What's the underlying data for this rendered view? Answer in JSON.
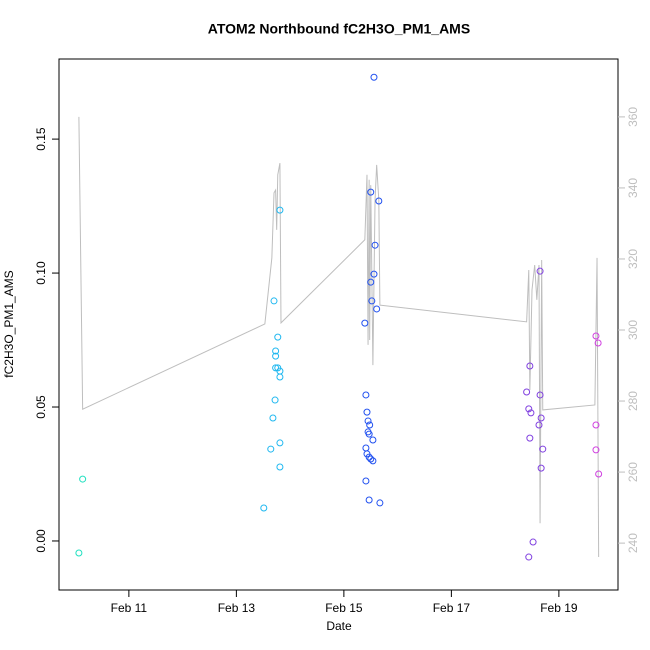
{
  "chart_data": {
    "type": "scatter",
    "title": "ATOM2 Northbound fC2H3O_PM1_AMS",
    "xlabel": "Date",
    "ylabel": "fC2H3O_PM1_AMS",
    "xlim": [
      9.7,
      20.1
    ],
    "ylim": [
      -0.0183,
      0.1799
    ],
    "y2lim": [
      226.8,
      376.3
    ],
    "xticks": [
      {
        "value": 11,
        "label": "Feb 11"
      },
      {
        "value": 13,
        "label": "Feb 13"
      },
      {
        "value": 15,
        "label": "Feb 15"
      },
      {
        "value": 17,
        "label": "Feb 17"
      },
      {
        "value": 19,
        "label": "Feb 19"
      }
    ],
    "yticks": [
      {
        "value": 0,
        "label": "0.00"
      },
      {
        "value": 0.05,
        "label": "0.05"
      },
      {
        "value": 0.1,
        "label": "0.10"
      },
      {
        "value": 0.15,
        "label": "0.15"
      }
    ],
    "y2ticks": [
      240,
      260,
      280,
      300,
      320,
      340,
      360
    ],
    "series": [
      {
        "type": "line",
        "axis": "y2",
        "color": "#bebebe",
        "x": [
          10.07,
          10.14,
          13.53,
          13.66,
          13.7,
          13.73,
          13.75,
          13.77,
          13.81,
          13.83,
          15.39,
          15.43,
          15.45,
          15.47,
          15.48,
          15.5,
          15.54,
          15.58,
          15.61,
          15.65,
          15.67,
          18.4,
          18.44,
          18.46,
          18.5,
          18.55,
          18.59,
          18.63,
          18.65,
          18.68,
          18.7,
          19.67,
          19.71,
          19.74
        ],
        "values": [
          360,
          277.7,
          301.7,
          320.3,
          338.6,
          339.4,
          328.2,
          343.7,
          347.0,
          302,
          325.4,
          343.7,
          295.8,
          342.3,
          297.2,
          340.8,
          290.1,
          336.6,
          346.5,
          336.6,
          307,
          302.3,
          316.9,
          283.1,
          311.3,
          318.3,
          308.5,
          318.3,
          245.6,
          319.7,
          277.5,
          278.9,
          320.3,
          236.1
        ]
      },
      {
        "type": "scatter",
        "color": "#20e0c0",
        "x": [
          10.07,
          10.14
        ],
        "values": [
          -0.0045,
          0.0231
        ]
      },
      {
        "type": "scatter",
        "color": "#20b8f0",
        "x": [
          13.81,
          13.7,
          13.77,
          13.73,
          13.73,
          13.73,
          13.77,
          13.81,
          13.81,
          13.72,
          13.68,
          13.81,
          13.64,
          13.81,
          13.51
        ],
        "values": [
          0.1235,
          0.0896,
          0.0761,
          0.0709,
          0.069,
          0.0646,
          0.0646,
          0.0634,
          0.0612,
          0.0526,
          0.0459,
          0.0366,
          0.0343,
          0.0276,
          0.0123
        ]
      },
      {
        "type": "scatter",
        "color": "#2050f0",
        "x": [
          15.56,
          15.5,
          15.65,
          15.58,
          15.56,
          15.5,
          15.52,
          15.61,
          15.39,
          15.41,
          15.43,
          15.45,
          15.48,
          15.45,
          15.47,
          15.54,
          15.41,
          15.43,
          15.47,
          15.5,
          15.54,
          15.41,
          15.47,
          15.67
        ],
        "values": [
          0.1731,
          0.1302,
          0.1269,
          0.1104,
          0.0996,
          0.0966,
          0.0896,
          0.0866,
          0.0813,
          0.0545,
          0.0481,
          0.0448,
          0.0433,
          0.0407,
          0.0399,
          0.0377,
          0.0347,
          0.0325,
          0.0313,
          0.0306,
          0.0299,
          0.0224,
          0.0153,
          0.0142
        ]
      },
      {
        "type": "scatter",
        "color": "#8040e0",
        "x": [
          18.65,
          18.46,
          18.4,
          18.65,
          18.44,
          18.48,
          18.67,
          18.63,
          18.46,
          18.7,
          18.67,
          18.52,
          18.44
        ],
        "values": [
          0.1007,
          0.0653,
          0.0556,
          0.0545,
          0.0493,
          0.0478,
          0.0459,
          0.0433,
          0.0384,
          0.0343,
          0.0272,
          -0.0004,
          -0.006
        ]
      },
      {
        "type": "scatter",
        "color": "#d040e0",
        "x": [
          19.69,
          19.73,
          19.69,
          19.69,
          19.74
        ],
        "values": [
          0.0765,
          0.0739,
          0.0433,
          0.034,
          0.025
        ]
      }
    ]
  }
}
